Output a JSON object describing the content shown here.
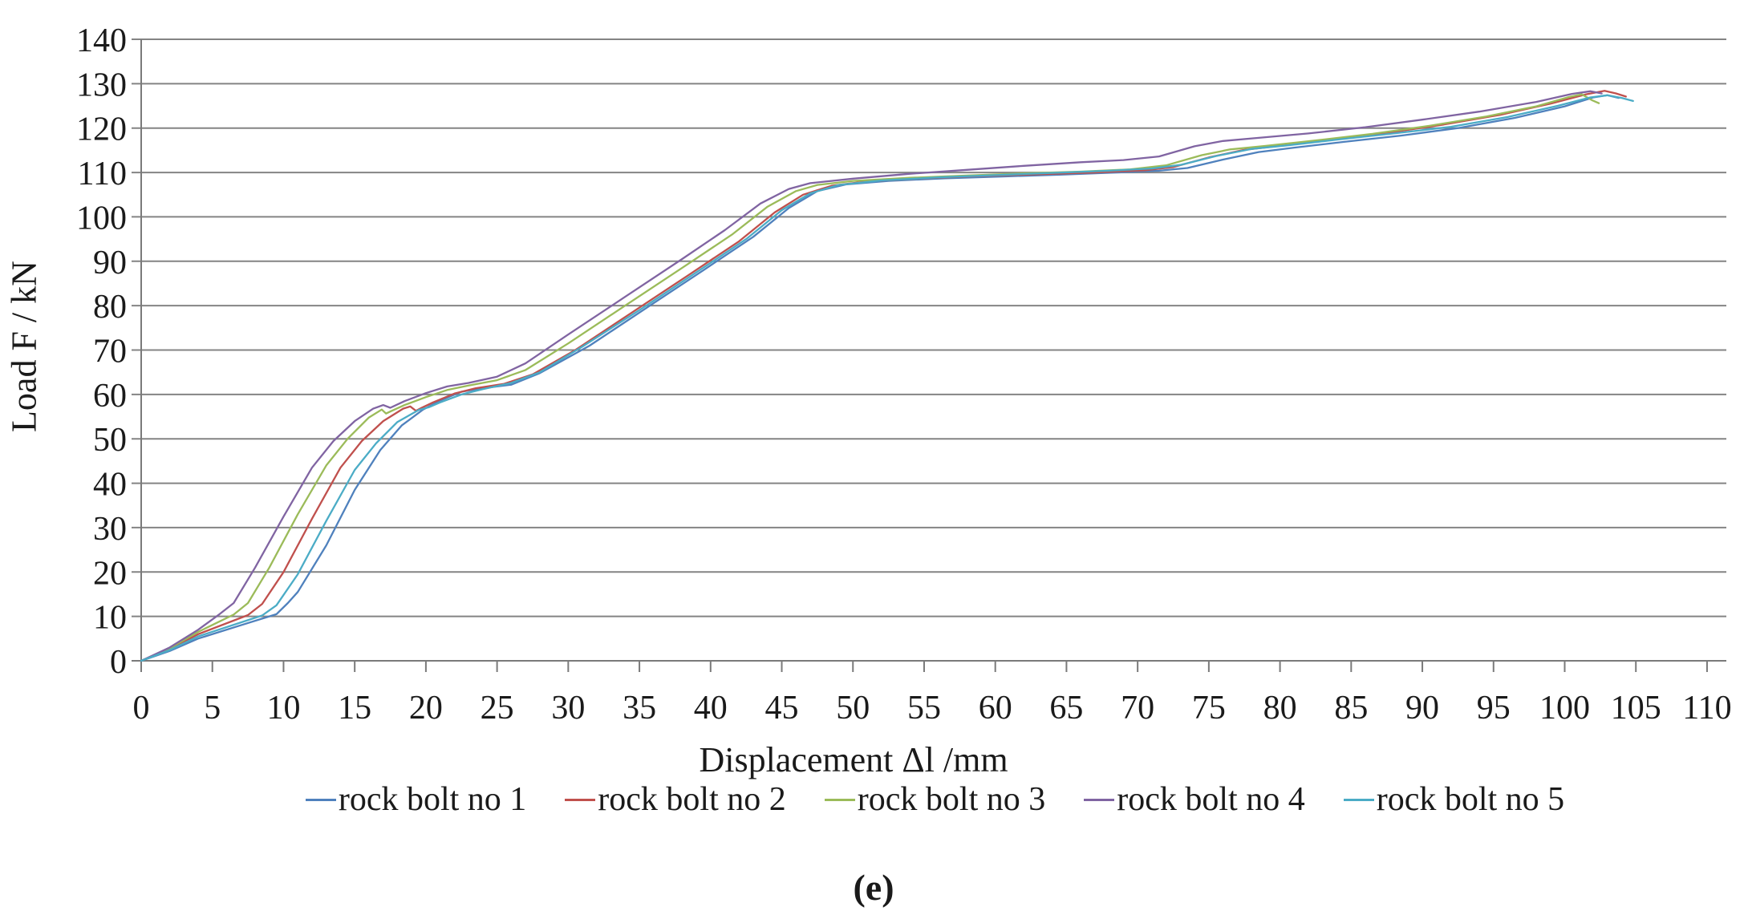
{
  "figure": {
    "caption": "(e)"
  },
  "colors": {
    "gridline": "#848484",
    "axis": "#7a7a7a",
    "text": "#1a1a1a"
  },
  "chart_data": {
    "type": "line",
    "title": "",
    "xlabel": "Displacement Δl /mm",
    "ylabel": "Load F / kN",
    "xlim": [
      0,
      110
    ],
    "ylim": [
      0,
      140
    ],
    "x_ticks": [
      0,
      5,
      10,
      15,
      20,
      25,
      30,
      35,
      40,
      45,
      50,
      55,
      60,
      65,
      70,
      75,
      80,
      85,
      90,
      95,
      100,
      105,
      110
    ],
    "y_ticks": [
      0,
      10,
      20,
      30,
      40,
      50,
      60,
      70,
      80,
      90,
      100,
      110,
      120,
      130,
      140
    ],
    "grid": "horizontal",
    "legend_position": "bottom",
    "series": [
      {
        "name": "rock bolt no 1",
        "color": "#4F81BD",
        "points": [
          [
            0,
            0
          ],
          [
            2,
            2.2
          ],
          [
            4,
            5
          ],
          [
            7,
            8
          ],
          [
            9.5,
            10.5
          ],
          [
            10.3,
            13
          ],
          [
            11,
            15.5
          ],
          [
            13,
            26
          ],
          [
            15,
            38.5
          ],
          [
            16.8,
            47.5
          ],
          [
            18.3,
            53
          ],
          [
            19.8,
            56.6
          ],
          [
            21,
            58.6
          ],
          [
            22.5,
            60.6
          ],
          [
            24,
            61.4
          ],
          [
            26,
            62.2
          ],
          [
            28,
            64.8
          ],
          [
            31.5,
            71
          ],
          [
            35.5,
            79.5
          ],
          [
            39.5,
            88
          ],
          [
            43,
            95.5
          ],
          [
            45.5,
            102
          ],
          [
            47.5,
            105.8
          ],
          [
            49.5,
            107.3
          ],
          [
            52.5,
            108.1
          ],
          [
            56.5,
            108.7
          ],
          [
            60.5,
            109.1
          ],
          [
            64.5,
            109.5
          ],
          [
            68.5,
            110
          ],
          [
            71.5,
            110.4
          ],
          [
            73.5,
            111
          ],
          [
            76,
            112.9
          ],
          [
            78.5,
            114.6
          ],
          [
            81,
            115.6
          ],
          [
            84.5,
            116.9
          ],
          [
            88.5,
            118.3
          ],
          [
            92.5,
            120
          ],
          [
            96.5,
            122.3
          ],
          [
            100,
            124.9
          ],
          [
            102,
            126.9
          ],
          [
            103,
            127.4
          ],
          [
            103.8,
            126.8
          ]
        ]
      },
      {
        "name": "rock bolt no 2",
        "color": "#C0504D",
        "points": [
          [
            0,
            0
          ],
          [
            2,
            2.6
          ],
          [
            4,
            6
          ],
          [
            7.5,
            10.3
          ],
          [
            8.5,
            12.8
          ],
          [
            10,
            20
          ],
          [
            12,
            32
          ],
          [
            14,
            43.5
          ],
          [
            15.5,
            49.5
          ],
          [
            17,
            54
          ],
          [
            18.4,
            56.8
          ],
          [
            18.9,
            57.3
          ],
          [
            19.3,
            56.3
          ],
          [
            19.7,
            57
          ],
          [
            20.5,
            58.2
          ],
          [
            22,
            60.2
          ],
          [
            23.5,
            61.4
          ],
          [
            25.5,
            62.4
          ],
          [
            27.5,
            64.5
          ],
          [
            30.5,
            70
          ],
          [
            34.5,
            78.5
          ],
          [
            38.5,
            87
          ],
          [
            42,
            94.5
          ],
          [
            44.5,
            101
          ],
          [
            46.5,
            105
          ],
          [
            48.5,
            107
          ],
          [
            51,
            108
          ],
          [
            55,
            108.7
          ],
          [
            59,
            109.2
          ],
          [
            63,
            109.6
          ],
          [
            67,
            110
          ],
          [
            70.5,
            110.5
          ],
          [
            72.5,
            111.2
          ],
          [
            75,
            113.4
          ],
          [
            77.5,
            115.1
          ],
          [
            80,
            116
          ],
          [
            83.5,
            117.3
          ],
          [
            87.5,
            118.9
          ],
          [
            91.5,
            120.8
          ],
          [
            95.5,
            123
          ],
          [
            99,
            125.5
          ],
          [
            101.5,
            127.6
          ],
          [
            102.8,
            128.4
          ],
          [
            103.6,
            127.8
          ],
          [
            104.3,
            127.1
          ]
        ]
      },
      {
        "name": "rock bolt no 3",
        "color": "#9BBB59",
        "points": [
          [
            0,
            0
          ],
          [
            2,
            2.8
          ],
          [
            4,
            6.5
          ],
          [
            6.5,
            10.4
          ],
          [
            7.5,
            13
          ],
          [
            9,
            21
          ],
          [
            11,
            33
          ],
          [
            13,
            44
          ],
          [
            14.5,
            50
          ],
          [
            16,
            54.8
          ],
          [
            16.9,
            56.6
          ],
          [
            17.2,
            55.7
          ],
          [
            17.6,
            56.3
          ],
          [
            18.5,
            57.6
          ],
          [
            20,
            59.4
          ],
          [
            21.5,
            61
          ],
          [
            23,
            62
          ],
          [
            25,
            63.2
          ],
          [
            27,
            65.5
          ],
          [
            30,
            71.5
          ],
          [
            34,
            80
          ],
          [
            38,
            88.5
          ],
          [
            41.5,
            96
          ],
          [
            44,
            102.3
          ],
          [
            46,
            105.8
          ],
          [
            47.5,
            107.2
          ],
          [
            50,
            108.1
          ],
          [
            54,
            108.8
          ],
          [
            58,
            109.3
          ],
          [
            62,
            109.8
          ],
          [
            66,
            110.2
          ],
          [
            69.5,
            110.7
          ],
          [
            72,
            111.6
          ],
          [
            74.5,
            113.9
          ],
          [
            76.5,
            115.2
          ],
          [
            79,
            116
          ],
          [
            82.5,
            117.2
          ],
          [
            86.5,
            118.7
          ],
          [
            90.5,
            120.5
          ],
          [
            94.5,
            122.6
          ],
          [
            98,
            124.9
          ],
          [
            100.3,
            127
          ],
          [
            101.2,
            127.6
          ],
          [
            101.9,
            126.3
          ],
          [
            102.4,
            125.6
          ]
        ]
      },
      {
        "name": "rock bolt no 4",
        "color": "#8064A2",
        "points": [
          [
            0,
            0
          ],
          [
            2,
            3
          ],
          [
            4,
            7
          ],
          [
            5.5,
            10.5
          ],
          [
            6.5,
            13
          ],
          [
            8,
            21
          ],
          [
            10,
            32.5
          ],
          [
            12,
            43.5
          ],
          [
            13.5,
            49.5
          ],
          [
            15,
            54
          ],
          [
            16.3,
            56.8
          ],
          [
            17,
            57.6
          ],
          [
            17.5,
            57
          ],
          [
            18.5,
            58.5
          ],
          [
            20,
            60.3
          ],
          [
            21.5,
            61.8
          ],
          [
            23,
            62.6
          ],
          [
            25,
            64
          ],
          [
            27,
            67
          ],
          [
            30,
            73.5
          ],
          [
            34,
            82
          ],
          [
            38,
            90.5
          ],
          [
            41,
            97
          ],
          [
            43.5,
            103
          ],
          [
            45.5,
            106.3
          ],
          [
            47,
            107.6
          ],
          [
            50,
            108.6
          ],
          [
            54,
            109.7
          ],
          [
            58,
            110.6
          ],
          [
            62,
            111.5
          ],
          [
            66,
            112.3
          ],
          [
            69,
            112.8
          ],
          [
            71.5,
            113.6
          ],
          [
            74,
            115.9
          ],
          [
            76,
            117.1
          ],
          [
            78.5,
            117.8
          ],
          [
            82,
            118.8
          ],
          [
            86,
            120.2
          ],
          [
            90,
            121.9
          ],
          [
            94,
            123.7
          ],
          [
            98,
            125.9
          ],
          [
            100.5,
            127.7
          ],
          [
            101.8,
            128.3
          ],
          [
            102.6,
            127.8
          ]
        ]
      },
      {
        "name": "rock bolt no 5",
        "color": "#4BACC6",
        "points": [
          [
            0,
            0
          ],
          [
            2,
            2.4
          ],
          [
            4,
            5.5
          ],
          [
            8.5,
            10.2
          ],
          [
            9.5,
            12.5
          ],
          [
            11,
            19.5
          ],
          [
            13,
            31.5
          ],
          [
            15,
            43
          ],
          [
            16.5,
            49
          ],
          [
            18,
            53.8
          ],
          [
            19.5,
            56.5
          ],
          [
            20.2,
            57.1
          ],
          [
            21,
            58.2
          ],
          [
            22.5,
            60
          ],
          [
            24,
            61.2
          ],
          [
            26,
            62.6
          ],
          [
            28,
            65
          ],
          [
            31,
            70.8
          ],
          [
            35,
            79
          ],
          [
            39,
            87.5
          ],
          [
            42.5,
            95
          ],
          [
            45,
            101.5
          ],
          [
            47,
            105.3
          ],
          [
            49,
            107.2
          ],
          [
            52,
            108.2
          ],
          [
            56,
            108.9
          ],
          [
            60,
            109.4
          ],
          [
            64,
            109.9
          ],
          [
            68,
            110.4
          ],
          [
            71,
            110.9
          ],
          [
            73,
            111.7
          ],
          [
            75.5,
            113.7
          ],
          [
            78,
            115.3
          ],
          [
            80.5,
            116.1
          ],
          [
            84,
            117.4
          ],
          [
            88,
            118.8
          ],
          [
            92,
            120.3
          ],
          [
            96,
            122.5
          ],
          [
            99.5,
            125
          ],
          [
            101.8,
            126.9
          ],
          [
            103,
            127.4
          ],
          [
            104,
            126.8
          ],
          [
            104.8,
            126.1
          ]
        ]
      }
    ]
  }
}
